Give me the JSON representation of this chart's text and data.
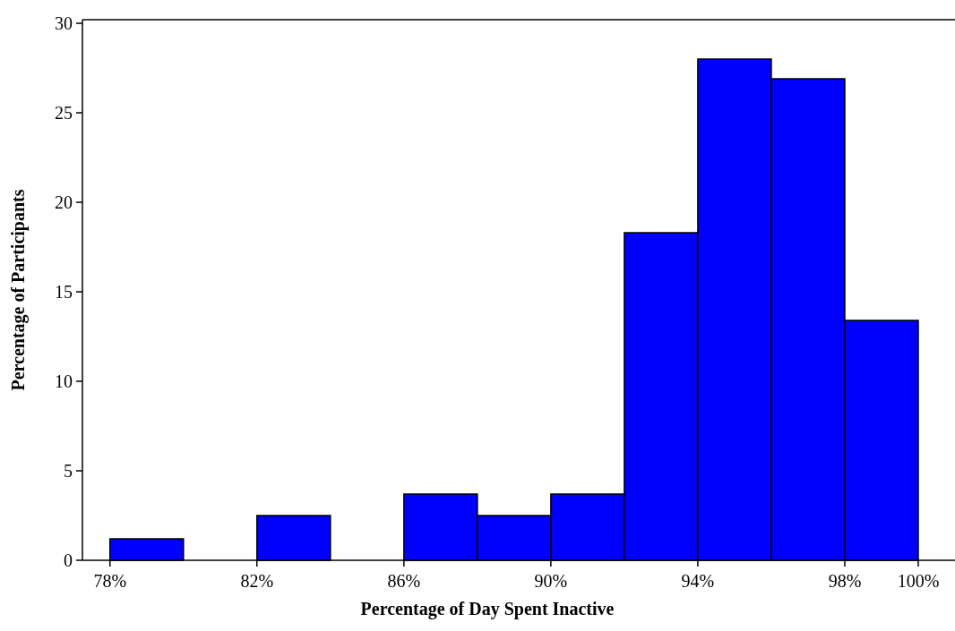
{
  "chart_data": {
    "type": "histogram",
    "xlabel": "Percentage of Day Spent Inactive",
    "ylabel": "Percentage of Participants",
    "bins": [
      78,
      80,
      82,
      84,
      86,
      88,
      90,
      92,
      94,
      96,
      98,
      100
    ],
    "values": [
      1.2,
      0,
      2.5,
      0,
      3.7,
      2.5,
      3.7,
      18.3,
      28.0,
      26.9,
      13.4
    ],
    "color": "#0000ff",
    "xlim": [
      77.25,
      101
    ],
    "ylim": [
      0,
      30.2
    ],
    "xticks": [
      {
        "value": 78,
        "label": "78%"
      },
      {
        "value": 82,
        "label": "82%"
      },
      {
        "value": 86,
        "label": "86%"
      },
      {
        "value": 90,
        "label": "90%"
      },
      {
        "value": 94,
        "label": "94%"
      },
      {
        "value": 98,
        "label": "98%"
      },
      {
        "value": 100,
        "label": "100%"
      }
    ],
    "yticks": [
      0,
      5,
      10,
      15,
      20,
      25,
      30
    ]
  }
}
